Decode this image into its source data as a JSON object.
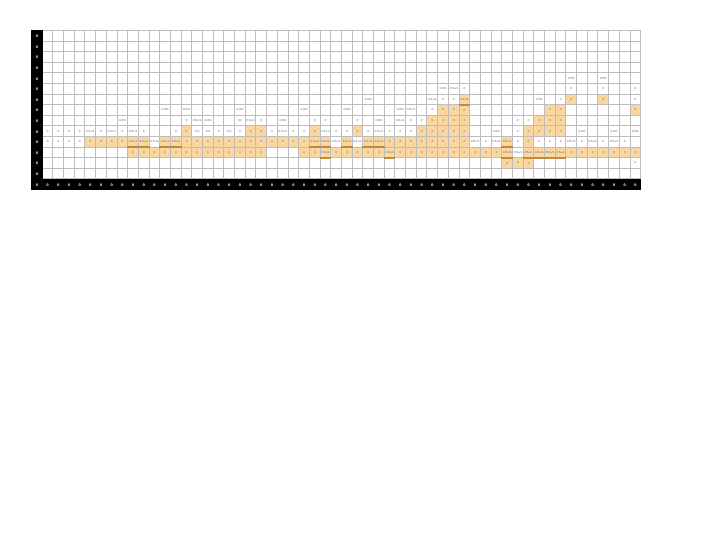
{
  "grid": {
    "columns": 56,
    "row_header_label": "0",
    "footer_label": "0",
    "colors": {
      "active": "#fad6a0",
      "header": "#000000",
      "grid_line": "#bdbdbd",
      "text": "#6b6b6b"
    },
    "rows": [
      {
        "label": "0",
        "cells": []
      },
      {
        "label": "0",
        "cells": []
      },
      {
        "label": "0",
        "cells": []
      },
      {
        "label": "0",
        "cells": []
      },
      {
        "label": "0",
        "cells": [
          {
            "c": 49,
            "t": "0.0%"
          },
          {
            "c": 52,
            "t": "0.0%"
          }
        ]
      },
      {
        "label": "0",
        "cells": [
          {
            "c": 37,
            "t": "0.0%"
          },
          {
            "c": 38,
            "t": "0.5+/1"
          },
          {
            "c": 39,
            "t": "0"
          },
          {
            "c": 49,
            "t": "0"
          },
          {
            "c": 52,
            "t": "0"
          },
          {
            "c": 55,
            "t": "0"
          }
        ]
      },
      {
        "label": "0",
        "cells": [
          {
            "c": 30,
            "t": "0.0%"
          },
          {
            "c": 36,
            "t": "0.5+/1"
          },
          {
            "c": 37,
            "t": "0"
          },
          {
            "c": 38,
            "t": "0"
          },
          {
            "c": 39,
            "on": true,
            "mark": true,
            "t": "0.5+/1"
          },
          {
            "c": 46,
            "t": "0.0%"
          },
          {
            "c": 48,
            "t": "0"
          },
          {
            "c": 49,
            "on": true,
            "t": "0"
          },
          {
            "c": 52,
            "on": true,
            "t": "0"
          },
          {
            "c": 55,
            "t": "0"
          }
        ]
      },
      {
        "label": "0",
        "cells": [
          {
            "c": 11,
            "t": "0.0%"
          },
          {
            "c": 13,
            "t": "0.0%"
          },
          {
            "c": 18,
            "t": "0.0%"
          },
          {
            "c": 24,
            "t": "0.0%"
          },
          {
            "c": 28,
            "t": "0.0%"
          },
          {
            "c": 33,
            "t": "0.0%"
          },
          {
            "c": 34,
            "t": "0.5+/1"
          },
          {
            "c": 36,
            "t": "0"
          },
          {
            "c": 37,
            "on": true,
            "t": "0"
          },
          {
            "c": 38,
            "on": true,
            "t": "0"
          },
          {
            "c": 39,
            "on": true,
            "t": "0"
          },
          {
            "c": 47,
            "on": true,
            "t": "0"
          },
          {
            "c": 48,
            "on": true,
            "t": "0"
          },
          {
            "c": 55,
            "on": true,
            "t": "0"
          }
        ]
      },
      {
        "label": "0",
        "cells": [
          {
            "c": 7,
            "t": "0.0%"
          },
          {
            "c": 13,
            "t": "0"
          },
          {
            "c": 14,
            "t": "0.5+/1"
          },
          {
            "c": 15,
            "t": "0.0%"
          },
          {
            "c": 18,
            "t": "0.0"
          },
          {
            "c": 19,
            "t": "0.5+/1"
          },
          {
            "c": 20,
            "t": "0"
          },
          {
            "c": 22,
            "t": "0.0%"
          },
          {
            "c": 25,
            "t": "0"
          },
          {
            "c": 26,
            "t": "0"
          },
          {
            "c": 29,
            "t": "0"
          },
          {
            "c": 31,
            "t": "0.0%"
          },
          {
            "c": 33,
            "t": "0.5+/1"
          },
          {
            "c": 34,
            "t": "0"
          },
          {
            "c": 35,
            "t": "0"
          },
          {
            "c": 36,
            "on": true,
            "t": "0"
          },
          {
            "c": 37,
            "on": true,
            "t": "0"
          },
          {
            "c": 38,
            "on": true,
            "t": "0"
          },
          {
            "c": 39,
            "on": true,
            "t": "0"
          },
          {
            "c": 44,
            "t": "0"
          },
          {
            "c": 45,
            "t": "0"
          },
          {
            "c": 46,
            "on": true,
            "t": "0"
          },
          {
            "c": 47,
            "on": true,
            "t": "0"
          },
          {
            "c": 48,
            "on": true,
            "t": "0"
          }
        ]
      },
      {
        "label": "0",
        "cells": [
          {
            "c": 0,
            "t": "0"
          },
          {
            "c": 1,
            "t": "0"
          },
          {
            "c": 2,
            "t": "0"
          },
          {
            "c": 3,
            "t": "0"
          },
          {
            "c": 4,
            "t": "0.5+/1"
          },
          {
            "c": 5,
            "t": "0"
          },
          {
            "c": 6,
            "t": "0.5+/1"
          },
          {
            "c": 7,
            "t": "0"
          },
          {
            "c": 8,
            "t": "0.5+/1"
          },
          {
            "c": 9,
            "t": "0"
          },
          {
            "c": 12,
            "t": "0"
          },
          {
            "c": 13,
            "on": true,
            "t": "0"
          },
          {
            "c": 14,
            "t": "0.0"
          },
          {
            "c": 15,
            "t": "0.0"
          },
          {
            "c": 16,
            "t": "0"
          },
          {
            "c": 17,
            "t": "0.0"
          },
          {
            "c": 18,
            "t": "0"
          },
          {
            "c": 19,
            "on": true,
            "t": "0"
          },
          {
            "c": 20,
            "on": true,
            "t": "0"
          },
          {
            "c": 21,
            "t": "0"
          },
          {
            "c": 22,
            "t": "0.5+/1"
          },
          {
            "c": 23,
            "t": "0"
          },
          {
            "c": 24,
            "t": "0"
          },
          {
            "c": 25,
            "on": true,
            "t": "0"
          },
          {
            "c": 26,
            "t": "0.5+/1"
          },
          {
            "c": 27,
            "t": "0"
          },
          {
            "c": 28,
            "t": "0"
          },
          {
            "c": 29,
            "on": true,
            "t": "0"
          },
          {
            "c": 30,
            "t": "0"
          },
          {
            "c": 31,
            "t": "0.5+/1"
          },
          {
            "c": 32,
            "t": "0"
          },
          {
            "c": 33,
            "t": "0"
          },
          {
            "c": 34,
            "t": "0"
          },
          {
            "c": 35,
            "on": true,
            "t": "0"
          },
          {
            "c": 36,
            "on": true,
            "t": "0"
          },
          {
            "c": 37,
            "on": true,
            "t": "0"
          },
          {
            "c": 38,
            "on": true,
            "t": "0"
          },
          {
            "c": 39,
            "on": true,
            "t": "0"
          },
          {
            "c": 42,
            "t": "0.0%"
          },
          {
            "c": 44,
            "t": "0"
          },
          {
            "c": 45,
            "on": true,
            "t": "0"
          },
          {
            "c": 46,
            "on": true,
            "t": "0"
          },
          {
            "c": 47,
            "on": true,
            "t": "0"
          },
          {
            "c": 48,
            "on": true,
            "t": "0"
          },
          {
            "c": 50,
            "t": "0.0%"
          },
          {
            "c": 53,
            "t": "0.0%"
          },
          {
            "c": 55,
            "t": "0.0%"
          }
        ]
      },
      {
        "label": "0",
        "cells": [
          {
            "c": 0,
            "t": "0"
          },
          {
            "c": 1,
            "t": "0"
          },
          {
            "c": 2,
            "t": "0"
          },
          {
            "c": 3,
            "t": "0"
          },
          {
            "c": 4,
            "on": true,
            "t": "0"
          },
          {
            "c": 5,
            "on": true,
            "t": "0"
          },
          {
            "c": 6,
            "on": true,
            "t": "0"
          },
          {
            "c": 7,
            "on": true,
            "t": "0"
          },
          {
            "c": 8,
            "on": true,
            "mark": true,
            "t": "0.5+/1"
          },
          {
            "c": 9,
            "on": true,
            "mark": true,
            "t": "0.5+/1"
          },
          {
            "c": 10,
            "t": "0.5+/1"
          },
          {
            "c": 11,
            "on": true,
            "mark": true,
            "t": "0.5+/1"
          },
          {
            "c": 12,
            "on": true,
            "mark": true,
            "t": "0.5+/1"
          },
          {
            "c": 13,
            "on": true,
            "t": "0"
          },
          {
            "c": 14,
            "on": true,
            "t": "0"
          },
          {
            "c": 15,
            "on": true,
            "t": "0"
          },
          {
            "c": 16,
            "on": true,
            "t": "0"
          },
          {
            "c": 17,
            "on": true,
            "t": "0"
          },
          {
            "c": 18,
            "on": true,
            "t": "0"
          },
          {
            "c": 19,
            "on": true,
            "t": "0"
          },
          {
            "c": 20,
            "on": true,
            "t": "0"
          },
          {
            "c": 21,
            "on": true,
            "t": "0"
          },
          {
            "c": 22,
            "on": true,
            "t": "0"
          },
          {
            "c": 23,
            "on": true,
            "t": "0"
          },
          {
            "c": 24,
            "on": true,
            "t": "0"
          },
          {
            "c": 25,
            "on": true,
            "mark": true,
            "t": "0.5+/1"
          },
          {
            "c": 26,
            "on": true,
            "mark": true,
            "t": "0.5+/1"
          },
          {
            "c": 27,
            "t": "0.5+/1"
          },
          {
            "c": 28,
            "on": true,
            "mark": true,
            "t": "0.5+/1"
          },
          {
            "c": 29,
            "t": "0.5+/1"
          },
          {
            "c": 30,
            "on": true,
            "mark": true,
            "t": "0.5+/1"
          },
          {
            "c": 31,
            "on": true,
            "mark": true,
            "t": "0.5+/1"
          },
          {
            "c": 32,
            "on": true,
            "t": "0"
          },
          {
            "c": 33,
            "on": true,
            "t": "0"
          },
          {
            "c": 34,
            "on": true,
            "t": "0"
          },
          {
            "c": 35,
            "on": true,
            "t": "0"
          },
          {
            "c": 36,
            "on": true,
            "t": "0"
          },
          {
            "c": 37,
            "on": true,
            "t": "0"
          },
          {
            "c": 38,
            "on": true,
            "t": "0"
          },
          {
            "c": 39,
            "on": true,
            "t": "0"
          },
          {
            "c": 40,
            "t": "0.5+/1"
          },
          {
            "c": 41,
            "t": "0"
          },
          {
            "c": 42,
            "t": "0.5+/1"
          },
          {
            "c": 43,
            "on": true,
            "mark": true,
            "t": "0.5+/1"
          },
          {
            "c": 44,
            "t": "0"
          },
          {
            "c": 45,
            "on": true,
            "t": "0"
          },
          {
            "c": 46,
            "t": "0"
          },
          {
            "c": 47,
            "t": "0"
          },
          {
            "c": 48,
            "t": "0"
          },
          {
            "c": 49,
            "t": "0.5+/1"
          },
          {
            "c": 50,
            "t": "0"
          },
          {
            "c": 51,
            "t": "0.5+/1"
          },
          {
            "c": 52,
            "t": "0"
          },
          {
            "c": 53,
            "t": "0.5+/1"
          },
          {
            "c": 54,
            "t": "0"
          }
        ]
      },
      {
        "label": "0",
        "cells": [
          {
            "c": 8,
            "on": true,
            "t": "0"
          },
          {
            "c": 9,
            "on": true,
            "t": "0"
          },
          {
            "c": 10,
            "on": true,
            "t": "0"
          },
          {
            "c": 11,
            "on": true,
            "t": "0"
          },
          {
            "c": 12,
            "on": true,
            "t": "0"
          },
          {
            "c": 13,
            "on": true,
            "t": "0"
          },
          {
            "c": 14,
            "on": true,
            "t": "0"
          },
          {
            "c": 15,
            "on": true,
            "t": "0"
          },
          {
            "c": 16,
            "on": true,
            "t": "0"
          },
          {
            "c": 17,
            "on": true,
            "t": "0"
          },
          {
            "c": 18,
            "on": true,
            "t": "0"
          },
          {
            "c": 19,
            "on": true,
            "t": "0"
          },
          {
            "c": 20,
            "on": true,
            "t": "0"
          },
          {
            "c": 24,
            "on": true,
            "t": "0"
          },
          {
            "c": 25,
            "on": true,
            "t": "0"
          },
          {
            "c": 26,
            "on": true,
            "mark": true,
            "t": "0.5+/1"
          },
          {
            "c": 27,
            "on": true,
            "t": "0"
          },
          {
            "c": 28,
            "on": true,
            "t": "0"
          },
          {
            "c": 29,
            "on": true,
            "t": "0"
          },
          {
            "c": 30,
            "on": true,
            "t": "0"
          },
          {
            "c": 31,
            "on": true,
            "t": "0"
          },
          {
            "c": 32,
            "on": true,
            "mark": true,
            "t": "0.5+/1"
          },
          {
            "c": 33,
            "on": true,
            "t": "0"
          },
          {
            "c": 34,
            "on": true,
            "t": "0"
          },
          {
            "c": 35,
            "on": true,
            "t": "0"
          },
          {
            "c": 36,
            "on": true,
            "t": "0"
          },
          {
            "c": 37,
            "on": true,
            "t": "0"
          },
          {
            "c": 38,
            "on": true,
            "t": "0"
          },
          {
            "c": 39,
            "on": true,
            "t": "0"
          },
          {
            "c": 40,
            "on": true,
            "t": "0"
          },
          {
            "c": 41,
            "on": true,
            "t": "0"
          },
          {
            "c": 42,
            "on": true,
            "t": "0"
          },
          {
            "c": 43,
            "on": true,
            "mark": true,
            "t": "0.5+/1"
          },
          {
            "c": 44,
            "t": "0.5+/1"
          },
          {
            "c": 45,
            "on": true,
            "mark": true,
            "t": "0.5+/1"
          },
          {
            "c": 46,
            "on": true,
            "mark": true,
            "t": "0.5+/1"
          },
          {
            "c": 47,
            "on": true,
            "mark": true,
            "t": "0.5+/1"
          },
          {
            "c": 48,
            "on": true,
            "mark": true,
            "t": "0.5+/1"
          },
          {
            "c": 49,
            "on": true,
            "t": "0"
          },
          {
            "c": 50,
            "on": true,
            "t": "0"
          },
          {
            "c": 51,
            "on": true,
            "t": "0"
          },
          {
            "c": 52,
            "on": true,
            "t": "0"
          },
          {
            "c": 53,
            "on": true,
            "t": "0"
          },
          {
            "c": 54,
            "on": true,
            "t": "0"
          },
          {
            "c": 55,
            "on": true,
            "t": "0"
          }
        ]
      },
      {
        "label": "0",
        "cells": [
          {
            "c": 43,
            "on": true,
            "t": "0"
          },
          {
            "c": 44,
            "on": true,
            "t": "0"
          },
          {
            "c": 45,
            "on": true,
            "t": "0"
          },
          {
            "c": 55,
            "t": "0"
          }
        ]
      },
      {
        "label": "0",
        "cells": []
      }
    ]
  }
}
